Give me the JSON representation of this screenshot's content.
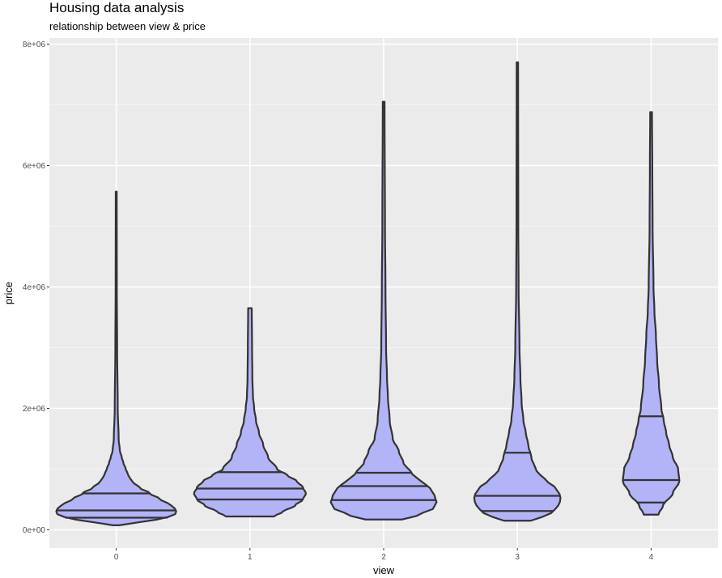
{
  "chart_data": {
    "type": "violin",
    "title": "Housing data analysis",
    "subtitle": "relationship between view & price",
    "xlabel": "view",
    "ylabel": "price",
    "categories": [
      "0",
      "1",
      "2",
      "3",
      "4"
    ],
    "yticks": [
      {
        "value": 0,
        "label": "0e+00"
      },
      {
        "value": 2000000,
        "label": "2e+06"
      },
      {
        "value": 4000000,
        "label": "4e+06"
      },
      {
        "value": 6000000,
        "label": "6e+06"
      },
      {
        "value": 8000000,
        "label": "8e+06"
      }
    ],
    "ylim": [
      -300000,
      8100000
    ],
    "grid": true,
    "colors": {
      "fill": "#b3b3f7",
      "outline": "#333333",
      "panel": "#ebebeb",
      "grid": "#ffffff"
    },
    "series": [
      {
        "min": 75000,
        "max": 5570000,
        "quantiles": [
          200000,
          320000,
          600000
        ],
        "profile": [
          [
            75000,
            0.05
          ],
          [
            120000,
            0.35
          ],
          [
            200000,
            0.85
          ],
          [
            260000,
            0.98
          ],
          [
            320000,
            1.0
          ],
          [
            400000,
            0.92
          ],
          [
            500000,
            0.74
          ],
          [
            600000,
            0.56
          ],
          [
            700000,
            0.38
          ],
          [
            800000,
            0.26
          ],
          [
            900000,
            0.2
          ],
          [
            1000000,
            0.16
          ],
          [
            1100000,
            0.12
          ],
          [
            1200000,
            0.09
          ],
          [
            1300000,
            0.06
          ],
          [
            1500000,
            0.04
          ],
          [
            2000000,
            0.025
          ],
          [
            3000000,
            0.015
          ],
          [
            4000000,
            0.01
          ],
          [
            5570000,
            0.008
          ]
        ]
      },
      {
        "min": 220000,
        "max": 3650000,
        "quantiles": [
          500000,
          680000,
          950000
        ],
        "profile": [
          [
            220000,
            0.4
          ],
          [
            300000,
            0.55
          ],
          [
            400000,
            0.75
          ],
          [
            500000,
            0.88
          ],
          [
            600000,
            0.93
          ],
          [
            700000,
            0.88
          ],
          [
            800000,
            0.78
          ],
          [
            900000,
            0.62
          ],
          [
            1000000,
            0.45
          ],
          [
            1200000,
            0.3
          ],
          [
            1400000,
            0.22
          ],
          [
            1600000,
            0.15
          ],
          [
            1800000,
            0.1
          ],
          [
            2000000,
            0.07
          ],
          [
            2200000,
            0.05
          ],
          [
            2500000,
            0.04
          ],
          [
            3000000,
            0.035
          ],
          [
            3650000,
            0.03
          ]
        ]
      },
      {
        "min": 170000,
        "max": 7050000,
        "quantiles": [
          490000,
          720000,
          940000
        ],
        "profile": [
          [
            170000,
            0.3
          ],
          [
            250000,
            0.6
          ],
          [
            350000,
            0.82
          ],
          [
            450000,
            0.88
          ],
          [
            550000,
            0.85
          ],
          [
            650000,
            0.8
          ],
          [
            750000,
            0.7
          ],
          [
            850000,
            0.55
          ],
          [
            950000,
            0.45
          ],
          [
            1100000,
            0.33
          ],
          [
            1300000,
            0.25
          ],
          [
            1500000,
            0.15
          ],
          [
            1800000,
            0.1
          ],
          [
            2200000,
            0.07
          ],
          [
            2500000,
            0.055
          ],
          [
            3000000,
            0.04
          ],
          [
            4000000,
            0.03
          ],
          [
            5000000,
            0.022
          ],
          [
            7050000,
            0.015
          ]
        ]
      },
      {
        "min": 150000,
        "max": 7700000,
        "quantiles": [
          310000,
          560000,
          1270000
        ],
        "profile": [
          [
            150000,
            0.22
          ],
          [
            220000,
            0.42
          ],
          [
            300000,
            0.6
          ],
          [
            400000,
            0.68
          ],
          [
            500000,
            0.72
          ],
          [
            600000,
            0.7
          ],
          [
            700000,
            0.62
          ],
          [
            800000,
            0.5
          ],
          [
            900000,
            0.38
          ],
          [
            1000000,
            0.3
          ],
          [
            1200000,
            0.23
          ],
          [
            1400000,
            0.18
          ],
          [
            1600000,
            0.14
          ],
          [
            1800000,
            0.1
          ],
          [
            2100000,
            0.07
          ],
          [
            2500000,
            0.05
          ],
          [
            3000000,
            0.035
          ],
          [
            4000000,
            0.02
          ],
          [
            5000000,
            0.015
          ],
          [
            7700000,
            0.012
          ]
        ]
      },
      {
        "min": 250000,
        "max": 6880000,
        "quantiles": [
          450000,
          820000,
          1870000
        ],
        "profile": [
          [
            250000,
            0.12
          ],
          [
            400000,
            0.2
          ],
          [
            600000,
            0.36
          ],
          [
            800000,
            0.47
          ],
          [
            1000000,
            0.45
          ],
          [
            1200000,
            0.36
          ],
          [
            1400000,
            0.3
          ],
          [
            1600000,
            0.25
          ],
          [
            1800000,
            0.21
          ],
          [
            2000000,
            0.17
          ],
          [
            2400000,
            0.13
          ],
          [
            2800000,
            0.1
          ],
          [
            3200000,
            0.08
          ],
          [
            3600000,
            0.055
          ],
          [
            4000000,
            0.04
          ],
          [
            5000000,
            0.025
          ],
          [
            6000000,
            0.02
          ],
          [
            6880000,
            0.015
          ]
        ]
      }
    ]
  }
}
